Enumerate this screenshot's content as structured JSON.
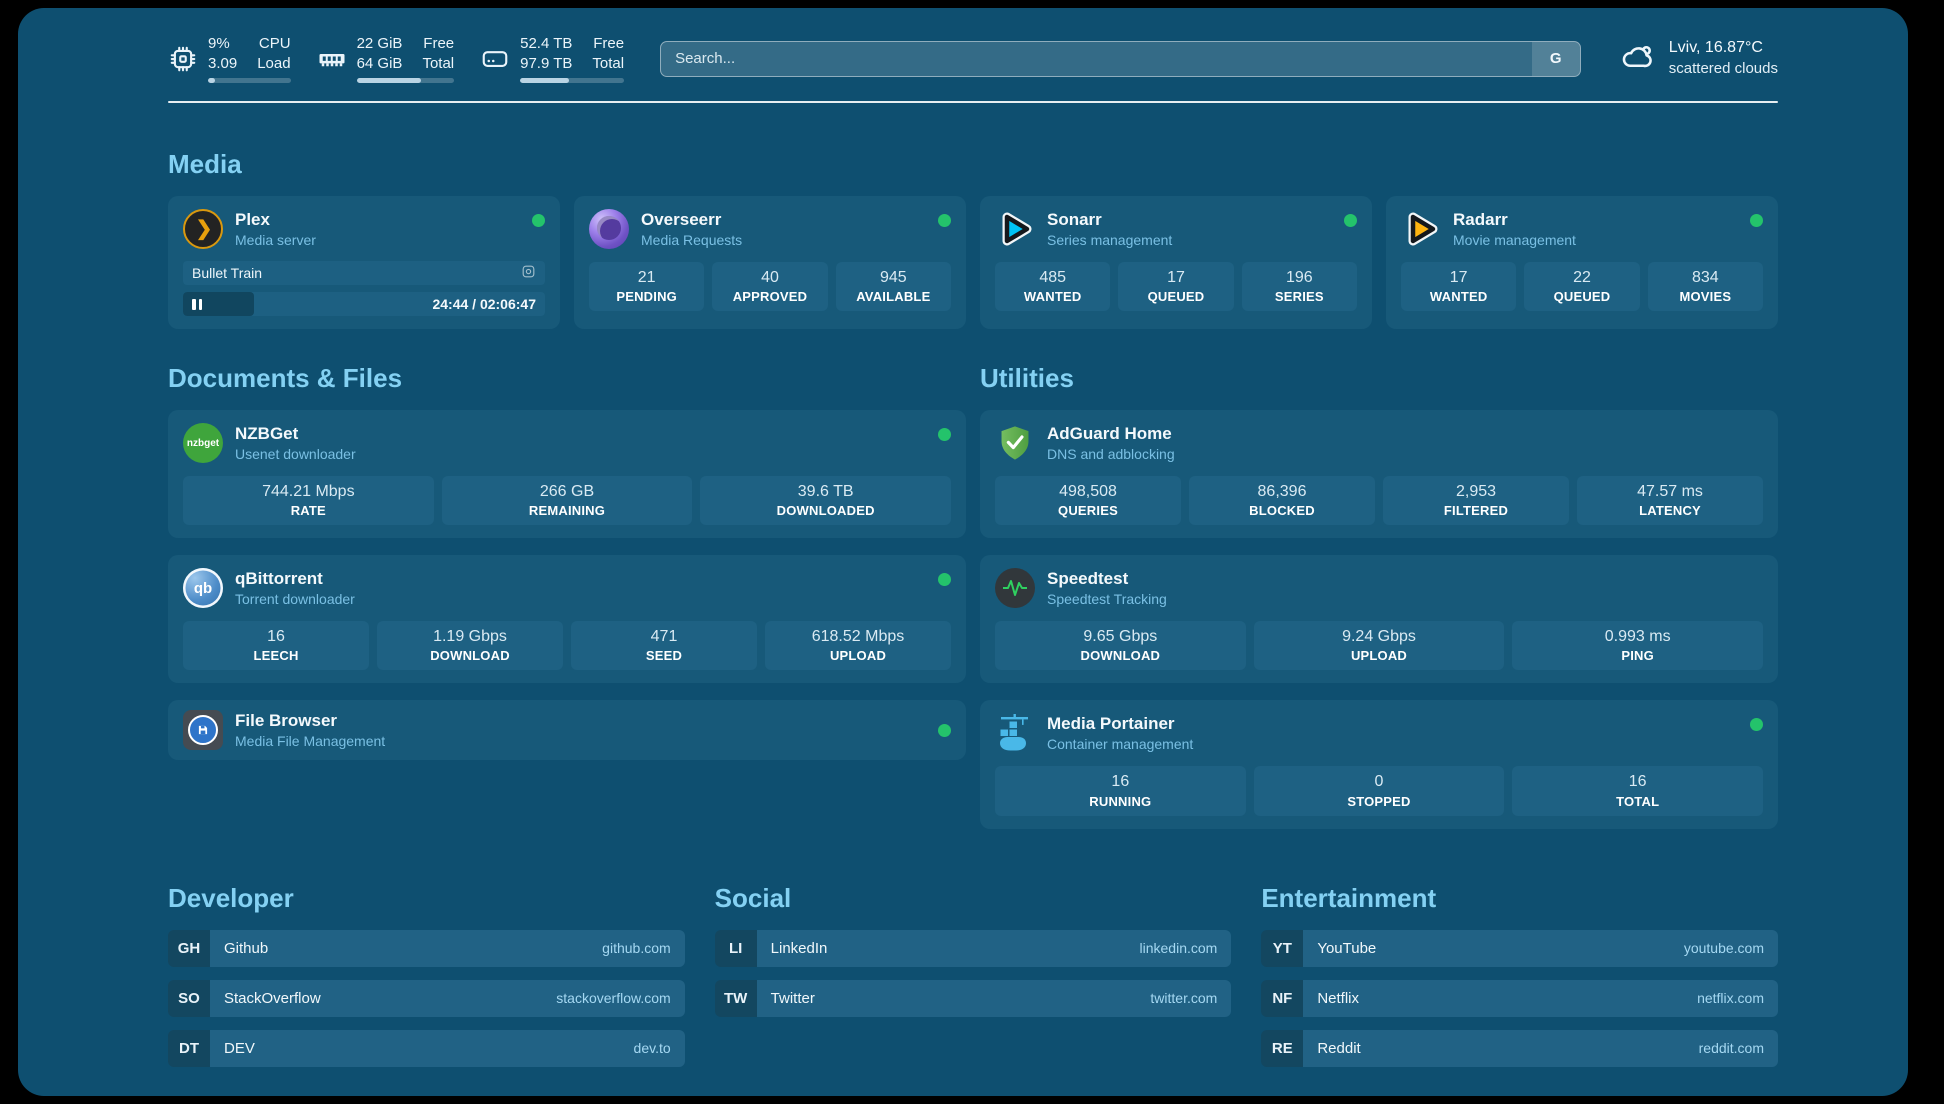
{
  "header": {
    "stats": [
      {
        "icon": "cpu-icon",
        "values": [
          "9%",
          "3.09"
        ],
        "labels": [
          "CPU",
          "Load"
        ],
        "progress_pct": 9
      },
      {
        "icon": "ram-icon",
        "values": [
          "22 GiB",
          "64 GiB"
        ],
        "labels": [
          "Free",
          "Total"
        ],
        "progress_pct": 66
      },
      {
        "icon": "disk-icon",
        "values": [
          "52.4 TB",
          "97.9 TB"
        ],
        "labels": [
          "Free",
          "Total"
        ],
        "progress_pct": 47
      }
    ],
    "search": {
      "placeholder": "Search...",
      "button_label": "G"
    },
    "weather": {
      "location_temp": "Lviv, 16.87°C",
      "condition": "scattered clouds"
    }
  },
  "sections": {
    "media": "Media",
    "documents": "Documents & Files",
    "utilities": "Utilities",
    "developer": "Developer",
    "social": "Social",
    "entertainment": "Entertainment"
  },
  "apps": {
    "plex": {
      "name": "Plex",
      "subtitle": "Media server",
      "icon_glyph": "❯",
      "now_playing": {
        "title": "Bullet Train",
        "time_display": "24:44 / 02:06:47",
        "progress_pct": 19.5
      }
    },
    "overseerr": {
      "name": "Overseerr",
      "subtitle": "Media Requests",
      "stats": [
        {
          "value": "21",
          "label": "PENDING"
        },
        {
          "value": "40",
          "label": "APPROVED"
        },
        {
          "value": "945",
          "label": "AVAILABLE"
        }
      ]
    },
    "sonarr": {
      "name": "Sonarr",
      "subtitle": "Series management",
      "stats": [
        {
          "value": "485",
          "label": "WANTED"
        },
        {
          "value": "17",
          "label": "QUEUED"
        },
        {
          "value": "196",
          "label": "SERIES"
        }
      ]
    },
    "radarr": {
      "name": "Radarr",
      "subtitle": "Movie management",
      "stats": [
        {
          "value": "17",
          "label": "WANTED"
        },
        {
          "value": "22",
          "label": "QUEUED"
        },
        {
          "value": "834",
          "label": "MOVIES"
        }
      ]
    },
    "nzbget": {
      "name": "NZBGet",
      "subtitle": "Usenet downloader",
      "icon_text": "nzbget",
      "stats": [
        {
          "value": "744.21 Mbps",
          "label": "RATE"
        },
        {
          "value": "266 GB",
          "label": "REMAINING"
        },
        {
          "value": "39.6 TB",
          "label": "DOWNLOADED"
        }
      ]
    },
    "qbittorrent": {
      "name": "qBittorrent",
      "subtitle": "Torrent downloader",
      "icon_text": "qb",
      "stats": [
        {
          "value": "16",
          "label": "LEECH"
        },
        {
          "value": "1.19 Gbps",
          "label": "DOWNLOAD"
        },
        {
          "value": "471",
          "label": "SEED"
        },
        {
          "value": "618.52 Mbps",
          "label": "UPLOAD"
        }
      ]
    },
    "filebrowser": {
      "name": "File Browser",
      "subtitle": "Media File Management"
    },
    "adguard": {
      "name": "AdGuard Home",
      "subtitle": "DNS and adblocking",
      "stats": [
        {
          "value": "498,508",
          "label": "QUERIES"
        },
        {
          "value": "86,396",
          "label": "BLOCKED"
        },
        {
          "value": "2,953",
          "label": "FILTERED"
        },
        {
          "value": "47.57 ms",
          "label": "LATENCY"
        }
      ]
    },
    "speedtest": {
      "name": "Speedtest",
      "subtitle": "Speedtest Tracking",
      "stats": [
        {
          "value": "9.65 Gbps",
          "label": "DOWNLOAD"
        },
        {
          "value": "9.24 Gbps",
          "label": "UPLOAD"
        },
        {
          "value": "0.993 ms",
          "label": "PING"
        }
      ]
    },
    "portainer": {
      "name": "Media Portainer",
      "subtitle": "Container management",
      "stats": [
        {
          "value": "16",
          "label": "RUNNING"
        },
        {
          "value": "0",
          "label": "STOPPED"
        },
        {
          "value": "16",
          "label": "TOTAL"
        }
      ]
    }
  },
  "bookmarks": {
    "developer": [
      {
        "tag": "GH",
        "name": "Github",
        "url": "github.com"
      },
      {
        "tag": "SO",
        "name": "StackOverflow",
        "url": "stackoverflow.com"
      },
      {
        "tag": "DT",
        "name": "DEV",
        "url": "dev.to"
      }
    ],
    "social": [
      {
        "tag": "LI",
        "name": "LinkedIn",
        "url": "linkedin.com"
      },
      {
        "tag": "TW",
        "name": "Twitter",
        "url": "twitter.com"
      }
    ],
    "entertainment": [
      {
        "tag": "YT",
        "name": "YouTube",
        "url": "youtube.com"
      },
      {
        "tag": "NF",
        "name": "Netflix",
        "url": "netflix.com"
      },
      {
        "tag": "RE",
        "name": "Reddit",
        "url": "reddit.com"
      }
    ]
  },
  "colors": {
    "panel": "#0e4f70",
    "card": "#175979",
    "status_green": "#24c36b",
    "accent_text": "#84d1f3"
  }
}
